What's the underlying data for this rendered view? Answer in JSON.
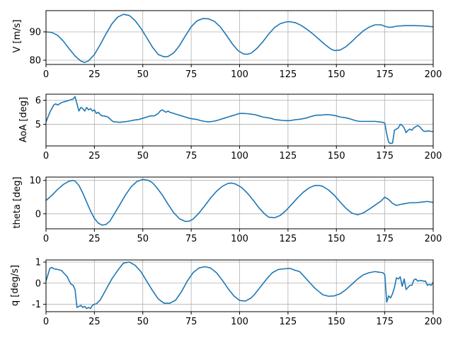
{
  "chart_data": [
    {
      "type": "line",
      "ylabel": "V [m/s]",
      "xlim": [
        0,
        200
      ],
      "ylim": [
        78.5,
        97.5
      ],
      "xticks": [
        "0",
        "25",
        "50",
        "75",
        "100",
        "125",
        "150",
        "175",
        "200"
      ],
      "yticks": [
        "80",
        "90"
      ],
      "grid": true,
      "series": [
        {
          "color": "#1f77b4",
          "x": [
            0,
            3,
            6,
            9,
            12,
            15,
            18,
            20,
            22,
            25,
            28,
            31,
            34,
            37,
            40,
            43,
            46,
            49,
            52,
            55,
            58,
            61,
            63,
            66,
            69,
            72,
            75,
            78,
            81,
            84,
            87,
            90,
            93,
            96,
            99,
            102,
            104,
            106,
            109,
            112,
            115,
            118,
            121,
            124,
            126,
            129,
            132,
            135,
            138,
            141,
            144,
            147,
            149,
            152,
            155,
            158,
            161,
            164,
            167,
            170,
            173,
            175,
            177,
            179,
            181,
            185,
            190,
            195,
            200
          ],
          "y": [
            90,
            89.8,
            88.8,
            86.7,
            84,
            81.5,
            79.7,
            79.2,
            79.8,
            82,
            85.5,
            89.3,
            92.8,
            95.2,
            96.2,
            95.8,
            94,
            91.3,
            88,
            84.6,
            82,
            81.2,
            81.3,
            82.6,
            85.2,
            88.6,
            91.8,
            93.9,
            94.7,
            94.6,
            93.7,
            91.8,
            89,
            86,
            83.5,
            82.2,
            82.1,
            82.5,
            84.2,
            86.5,
            89.2,
            91.5,
            92.9,
            93.5,
            93.6,
            93.2,
            92.2,
            90.8,
            89.2,
            87.4,
            85.6,
            84,
            83.4,
            83.6,
            84.8,
            86.6,
            88.6,
            90.4,
            91.7,
            92.5,
            92.5,
            92,
            91.6,
            91.7,
            92,
            92.2,
            92.2,
            92.1,
            91.8
          ]
        }
      ]
    },
    {
      "type": "line",
      "ylabel": "AoA [deg]",
      "xlim": [
        0,
        200
      ],
      "ylim": [
        4.1,
        6.25
      ],
      "xticks": [
        "0",
        "25",
        "50",
        "75",
        "100",
        "125",
        "150",
        "175",
        "200"
      ],
      "yticks": [
        "5",
        "6"
      ],
      "grid": true,
      "series": [
        {
          "color": "#1f77b4",
          "x": [
            0,
            2,
            4,
            5,
            6,
            7,
            8,
            10,
            12,
            14,
            15,
            16,
            17,
            18,
            19,
            20,
            21,
            22,
            23,
            24,
            25,
            26,
            27,
            28,
            29,
            30,
            32,
            34,
            35,
            36,
            38,
            40,
            42,
            44,
            46,
            48,
            50,
            52,
            54,
            56,
            58,
            59,
            60,
            61,
            62,
            63,
            64,
            66,
            68,
            70,
            72,
            74,
            76,
            78,
            80,
            82,
            84,
            86,
            88,
            90,
            92,
            94,
            96,
            98,
            100,
            102,
            104,
            106,
            108,
            110,
            112,
            114,
            116,
            118,
            120,
            122,
            124,
            126,
            128,
            130,
            132,
            134,
            136,
            138,
            140,
            142,
            144,
            146,
            148,
            150,
            152,
            154,
            156,
            158,
            160,
            162,
            164,
            166,
            168,
            170,
            172,
            174,
            175,
            176,
            177,
            178,
            179,
            180,
            181,
            182,
            183,
            184,
            185,
            186,
            187,
            188,
            189,
            190,
            191,
            192,
            193,
            194,
            195,
            196,
            197,
            198,
            199,
            200
          ],
          "y": [
            5.1,
            5.5,
            5.8,
            5.85,
            5.8,
            5.85,
            5.9,
            5.95,
            6,
            6.05,
            6.15,
            5.85,
            5.55,
            5.7,
            5.65,
            5.55,
            5.7,
            5.6,
            5.65,
            5.55,
            5.6,
            5.45,
            5.5,
            5.4,
            5.35,
            5.35,
            5.3,
            5.15,
            5.1,
            5.1,
            5.08,
            5.1,
            5.12,
            5.15,
            5.18,
            5.2,
            5.25,
            5.3,
            5.35,
            5.35,
            5.45,
            5.55,
            5.6,
            5.55,
            5.5,
            5.55,
            5.5,
            5.45,
            5.4,
            5.35,
            5.3,
            5.25,
            5.22,
            5.2,
            5.15,
            5.12,
            5.1,
            5.12,
            5.15,
            5.2,
            5.25,
            5.3,
            5.35,
            5.4,
            5.45,
            5.45,
            5.44,
            5.42,
            5.4,
            5.35,
            5.3,
            5.28,
            5.25,
            5.2,
            5.18,
            5.16,
            5.15,
            5.15,
            5.18,
            5.2,
            5.22,
            5.25,
            5.3,
            5.35,
            5.38,
            5.38,
            5.4,
            5.4,
            5.38,
            5.35,
            5.3,
            5.28,
            5.25,
            5.2,
            5.15,
            5.12,
            5.12,
            5.12,
            5.12,
            5.12,
            5.1,
            5.08,
            5.05,
            4.6,
            4.25,
            4.2,
            4.22,
            4.75,
            4.8,
            4.85,
            5,
            4.95,
            4.85,
            4.65,
            4.75,
            4.8,
            4.75,
            4.85,
            4.9,
            4.95,
            4.9,
            4.8,
            4.72,
            4.7,
            4.72,
            4.72,
            4.7,
            4.7
          ]
        }
      ]
    },
    {
      "type": "line",
      "ylabel": "theta [deg]",
      "xlim": [
        0,
        200
      ],
      "ylim": [
        -4.5,
        11
      ],
      "xticks": [
        "0",
        "25",
        "50",
        "75",
        "100",
        "125",
        "150",
        "175",
        "200"
      ],
      "yticks": [
        "0",
        "10"
      ],
      "grid": true,
      "series": [
        {
          "color": "#1f77b4",
          "x": [
            0,
            3,
            6,
            9,
            12,
            14,
            15,
            17,
            19,
            21,
            23,
            25,
            27,
            29,
            31,
            33,
            35,
            38,
            41,
            44,
            47,
            50,
            53,
            55,
            57,
            60,
            63,
            66,
            69,
            72,
            74,
            76,
            79,
            82,
            85,
            88,
            91,
            94,
            96,
            98,
            101,
            104,
            107,
            110,
            113,
            115,
            118,
            121,
            124,
            127,
            130,
            133,
            136,
            139,
            141,
            143,
            146,
            149,
            152,
            155,
            158,
            161,
            164,
            167,
            170,
            173,
            175,
            177,
            179,
            181,
            183,
            185,
            188,
            191,
            194,
            197,
            200
          ],
          "y": [
            4,
            5.5,
            7.3,
            8.8,
            9.8,
            10,
            9.8,
            8.5,
            6.2,
            3.5,
            0.8,
            -1.4,
            -2.8,
            -3.4,
            -3.2,
            -2.2,
            -0.3,
            2.6,
            5.6,
            8.1,
            9.7,
            10.3,
            10,
            9.3,
            8,
            5.7,
            2.9,
            0.3,
            -1.5,
            -2.3,
            -2.2,
            -1.6,
            0.2,
            2.4,
            4.7,
            6.7,
            8.2,
            9.1,
            9.2,
            8.9,
            7.9,
            6.2,
            4.1,
            1.8,
            -0.1,
            -1,
            -1.2,
            -0.5,
            1,
            2.9,
            4.8,
            6.5,
            7.8,
            8.5,
            8.5,
            8.2,
            7.1,
            5.5,
            3.5,
            1.6,
            0.2,
            -0.3,
            0.3,
            1.4,
            2.6,
            3.8,
            5,
            4.3,
            3.1,
            2.5,
            2.8,
            3,
            3.3,
            3.3,
            3.5,
            3.7,
            3.4
          ]
        }
      ]
    },
    {
      "type": "line",
      "ylabel": "q [deg/s]",
      "xlim": [
        0,
        200
      ],
      "ylim": [
        -1.35,
        1.1
      ],
      "xticks": [
        "0",
        "25",
        "50",
        "75",
        "100",
        "125",
        "150",
        "175",
        "200"
      ],
      "yticks": [
        "-1",
        "0",
        "1"
      ],
      "grid": true,
      "series": [
        {
          "color": "#1f77b4",
          "x": [
            0,
            1,
            2,
            3,
            4,
            6,
            8,
            9,
            10,
            11,
            12,
            13,
            14,
            15,
            16,
            17,
            18,
            19,
            20,
            21,
            22,
            23,
            24,
            25,
            26,
            28,
            31,
            34,
            37,
            40,
            43,
            46,
            49,
            52,
            55,
            58,
            61,
            64,
            67,
            70,
            73,
            76,
            79,
            82,
            85,
            88,
            91,
            94,
            97,
            100,
            103,
            106,
            108,
            111,
            114,
            117,
            120,
            123,
            126,
            129,
            131,
            133,
            135,
            137,
            139,
            141,
            143,
            146,
            149,
            152,
            155,
            158,
            161,
            164,
            167,
            170,
            172,
            174,
            175,
            176,
            177,
            178,
            179,
            180,
            181,
            182,
            183,
            184,
            185,
            186,
            187,
            188,
            189,
            190,
            191,
            192,
            193,
            194,
            195,
            196,
            197,
            198,
            199,
            200
          ],
          "y": [
            0.1,
            0.4,
            0.7,
            0.75,
            0.68,
            0.65,
            0.6,
            0.5,
            0.4,
            0.3,
            0.1,
            -0.05,
            -0.1,
            -0.3,
            -1.15,
            -1.1,
            -1.05,
            -1.15,
            -1.1,
            -1.2,
            -1.15,
            -1.2,
            -1.05,
            -1,
            -0.98,
            -0.8,
            -0.3,
            0.2,
            0.6,
            0.95,
            1,
            0.85,
            0.55,
            0.1,
            -0.35,
            -0.75,
            -0.95,
            -0.95,
            -0.8,
            -0.4,
            0.1,
            0.5,
            0.72,
            0.78,
            0.72,
            0.5,
            0.15,
            -0.25,
            -0.6,
            -0.82,
            -0.85,
            -0.7,
            -0.5,
            -0.15,
            0.2,
            0.5,
            0.65,
            0.68,
            0.7,
            0.6,
            0.55,
            0.35,
            0.15,
            -0.05,
            -0.25,
            -0.4,
            -0.55,
            -0.62,
            -0.6,
            -0.5,
            -0.3,
            -0.05,
            0.2,
            0.4,
            0.5,
            0.55,
            0.52,
            0.5,
            0.4,
            -0.9,
            -0.6,
            -0.7,
            -0.5,
            -0.2,
            0.25,
            0.2,
            0.3,
            -0.15,
            0.2,
            -0.3,
            -0.2,
            -0.1,
            -0.1,
            0.15,
            0.2,
            0.1,
            0.12,
            0.12,
            0.1,
            0.1,
            -0.1,
            -0.05,
            -0.1,
            0.05
          ]
        }
      ]
    }
  ]
}
